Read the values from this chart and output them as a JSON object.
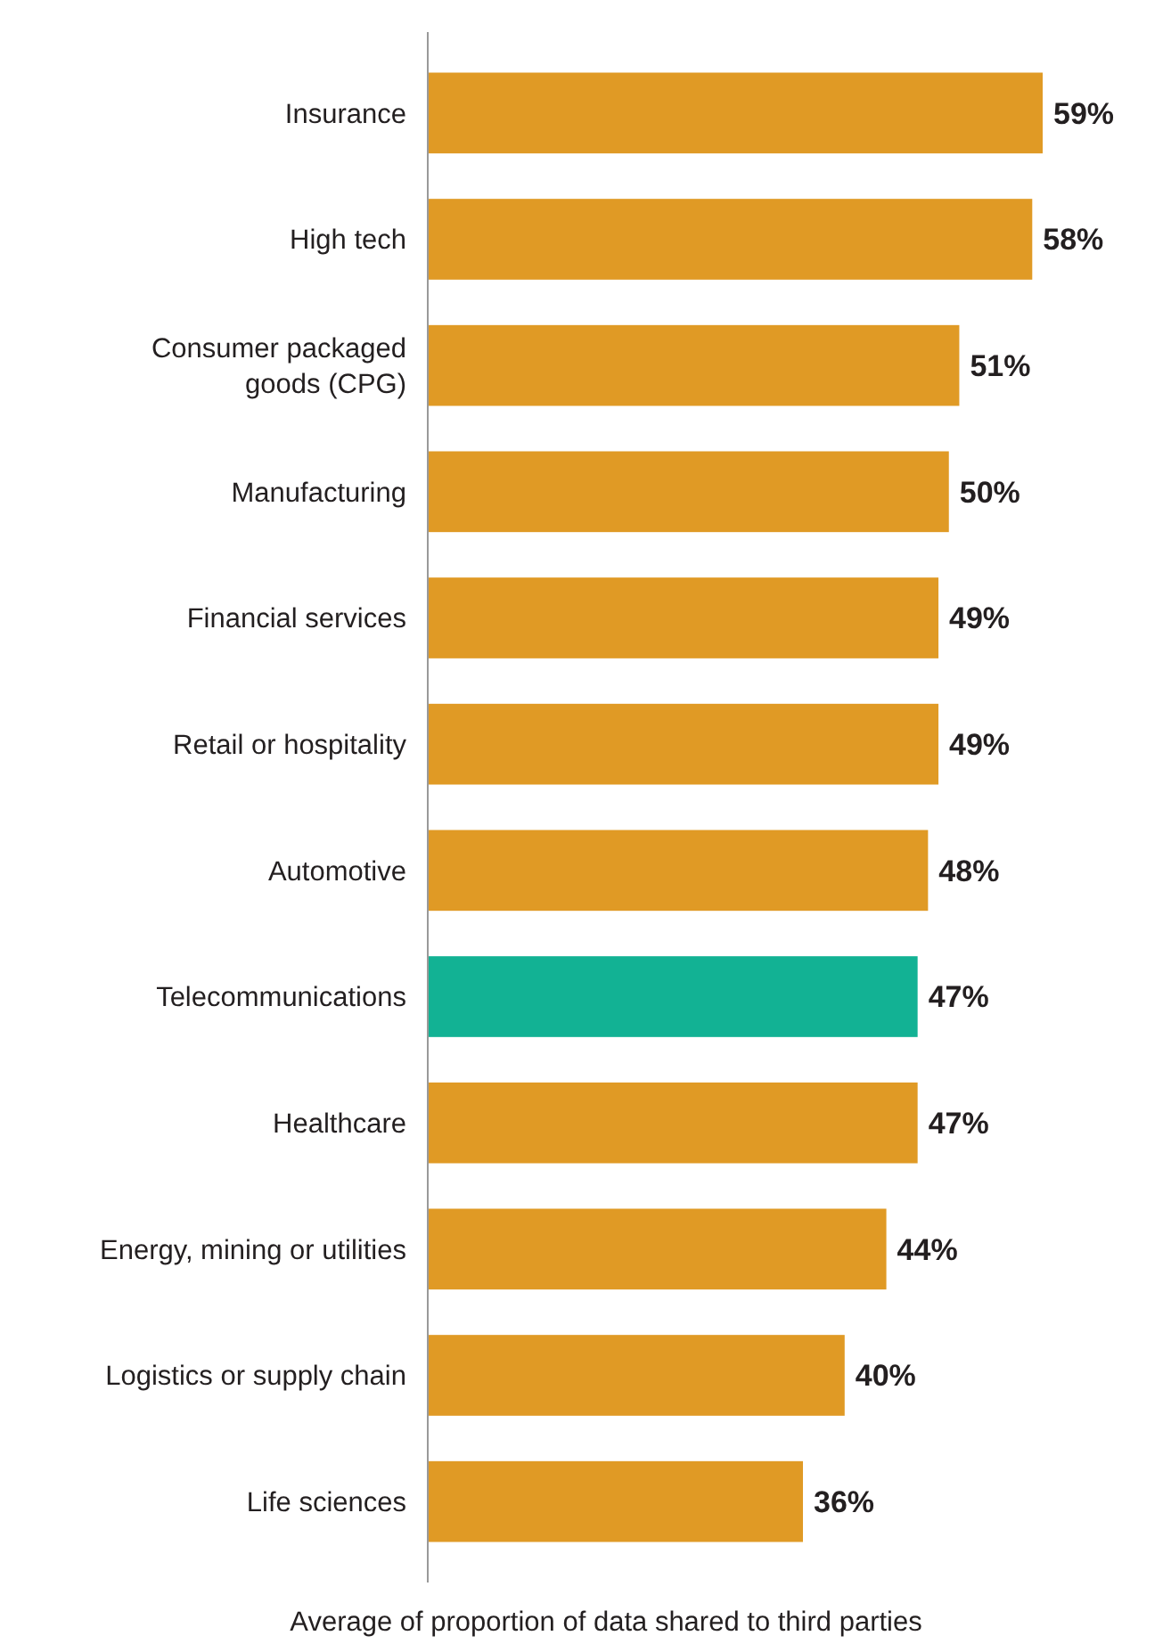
{
  "chart_data": {
    "type": "bar",
    "orientation": "horizontal",
    "xlabel": "Average of proportion of data shared to third parties",
    "categories": [
      "Insurance",
      "High tech",
      "Consumer packaged\ngoods (CPG)",
      "Manufacturing",
      "Financial services",
      "Retail or hospitality",
      "Automotive",
      "Telecommunications",
      "Healthcare",
      "Energy, mining or utilities",
      "Logistics or supply chain",
      "Life sciences"
    ],
    "values": [
      59,
      58,
      51,
      50,
      49,
      49,
      48,
      47,
      47,
      44,
      40,
      36
    ],
    "colors": [
      "#e09a25",
      "#e09a25",
      "#e09a25",
      "#e09a25",
      "#e09a25",
      "#e09a25",
      "#e09a25",
      "#12b294",
      "#e09a25",
      "#e09a25",
      "#e09a25",
      "#e09a25"
    ],
    "value_labels": [
      "59%",
      "58%",
      "51%",
      "50%",
      "49%",
      "49%",
      "48%",
      "47%",
      "47%",
      "44%",
      "40%",
      "36%"
    ]
  }
}
